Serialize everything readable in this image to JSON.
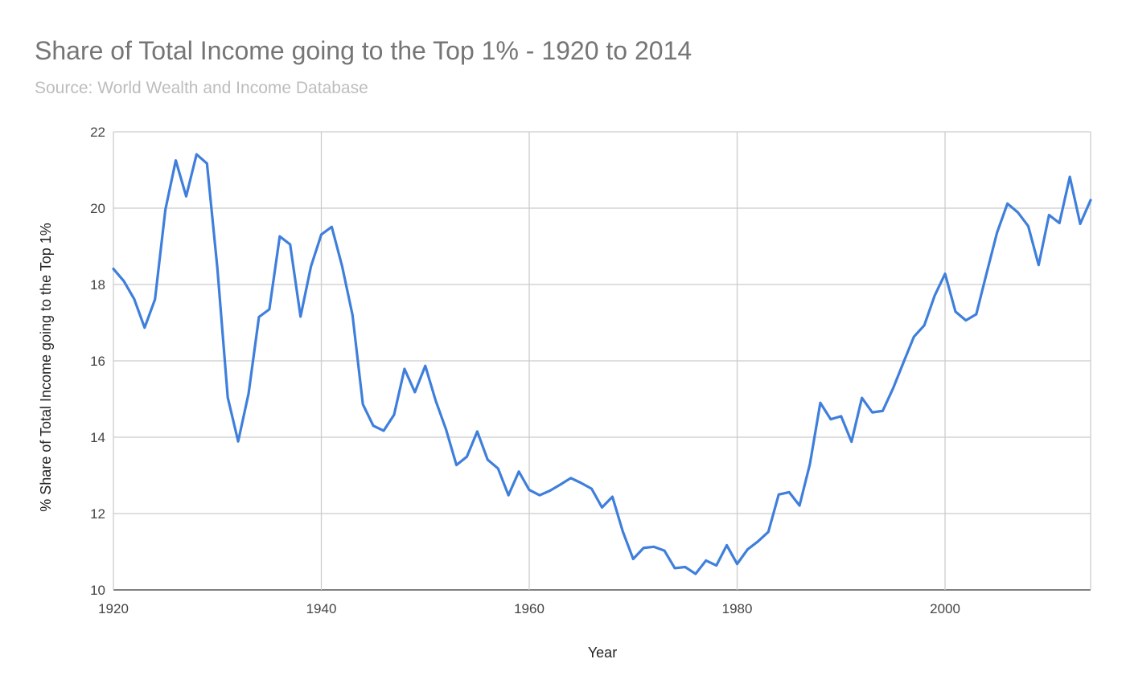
{
  "title": "Share of Total Income going to the Top 1% - 1920 to 2014",
  "subtitle": "Source: World Wealth and Income Database",
  "chart_data": {
    "type": "line",
    "title": "Share of Total Income going to the Top 1% - 1920 to 2014",
    "subtitle": "Source: World Wealth and Income Database",
    "xlabel": "Year",
    "ylabel": "% Share of Total Income going to the Top 1%",
    "xlim": [
      1920,
      2014
    ],
    "ylim": [
      10,
      22
    ],
    "x_ticks": [
      1920,
      1940,
      1960,
      1980,
      2000
    ],
    "y_ticks": [
      10,
      12,
      14,
      16,
      18,
      20,
      22
    ],
    "grid": true,
    "legend": "none",
    "color": "#3f7fdc",
    "series": [
      {
        "x": [
          1920,
          1921,
          1922,
          1923,
          1924,
          1925,
          1926,
          1927,
          1928,
          1929,
          1930,
          1931,
          1932,
          1933,
          1934,
          1935,
          1936,
          1937,
          1938,
          1939,
          1940,
          1941,
          1942,
          1943,
          1944,
          1945,
          1946,
          1947,
          1948,
          1949,
          1950,
          1951,
          1952,
          1953,
          1954,
          1955,
          1956,
          1957,
          1958,
          1959,
          1960,
          1961,
          1962,
          1963,
          1964,
          1965,
          1966,
          1967,
          1968,
          1969,
          1970,
          1971,
          1972,
          1973,
          1974,
          1975,
          1976,
          1977,
          1978,
          1979,
          1980,
          1981,
          1982,
          1983,
          1984,
          1985,
          1986,
          1987,
          1988,
          1989,
          1990,
          1991,
          1992,
          1993,
          1994,
          1995,
          1996,
          1997,
          1998,
          1999,
          2000,
          2001,
          2002,
          2003,
          2004,
          2005,
          2006,
          2007,
          2008,
          2009,
          2010,
          2011,
          2012,
          2013,
          2014
        ],
        "values": [
          18.41,
          18.09,
          17.62,
          16.87,
          17.61,
          19.96,
          21.25,
          20.31,
          21.41,
          21.17,
          18.43,
          15.04,
          13.89,
          15.14,
          17.15,
          17.35,
          19.26,
          19.05,
          17.16,
          18.47,
          19.31,
          19.51,
          18.48,
          17.2,
          14.86,
          14.3,
          14.17,
          14.59,
          15.79,
          15.18,
          15.87,
          14.96,
          14.2,
          13.27,
          13.49,
          14.15,
          13.41,
          13.18,
          12.48,
          13.1,
          12.62,
          12.48,
          12.6,
          12.76,
          12.93,
          12.8,
          12.65,
          12.16,
          12.44,
          11.53,
          10.81,
          11.1,
          11.13,
          11.03,
          10.57,
          10.6,
          10.42,
          10.77,
          10.64,
          11.17,
          10.68,
          11.06,
          11.27,
          11.52,
          12.5,
          12.56,
          12.21,
          13.3,
          14.9,
          14.47,
          14.55,
          13.88,
          15.03,
          14.65,
          14.69,
          15.28,
          15.96,
          16.63,
          16.93,
          17.71,
          18.28,
          17.29,
          17.06,
          17.22,
          18.3,
          19.36,
          20.12,
          19.89,
          19.53,
          18.51,
          19.82,
          19.61,
          20.82,
          19.59,
          20.21
        ]
      }
    ]
  }
}
